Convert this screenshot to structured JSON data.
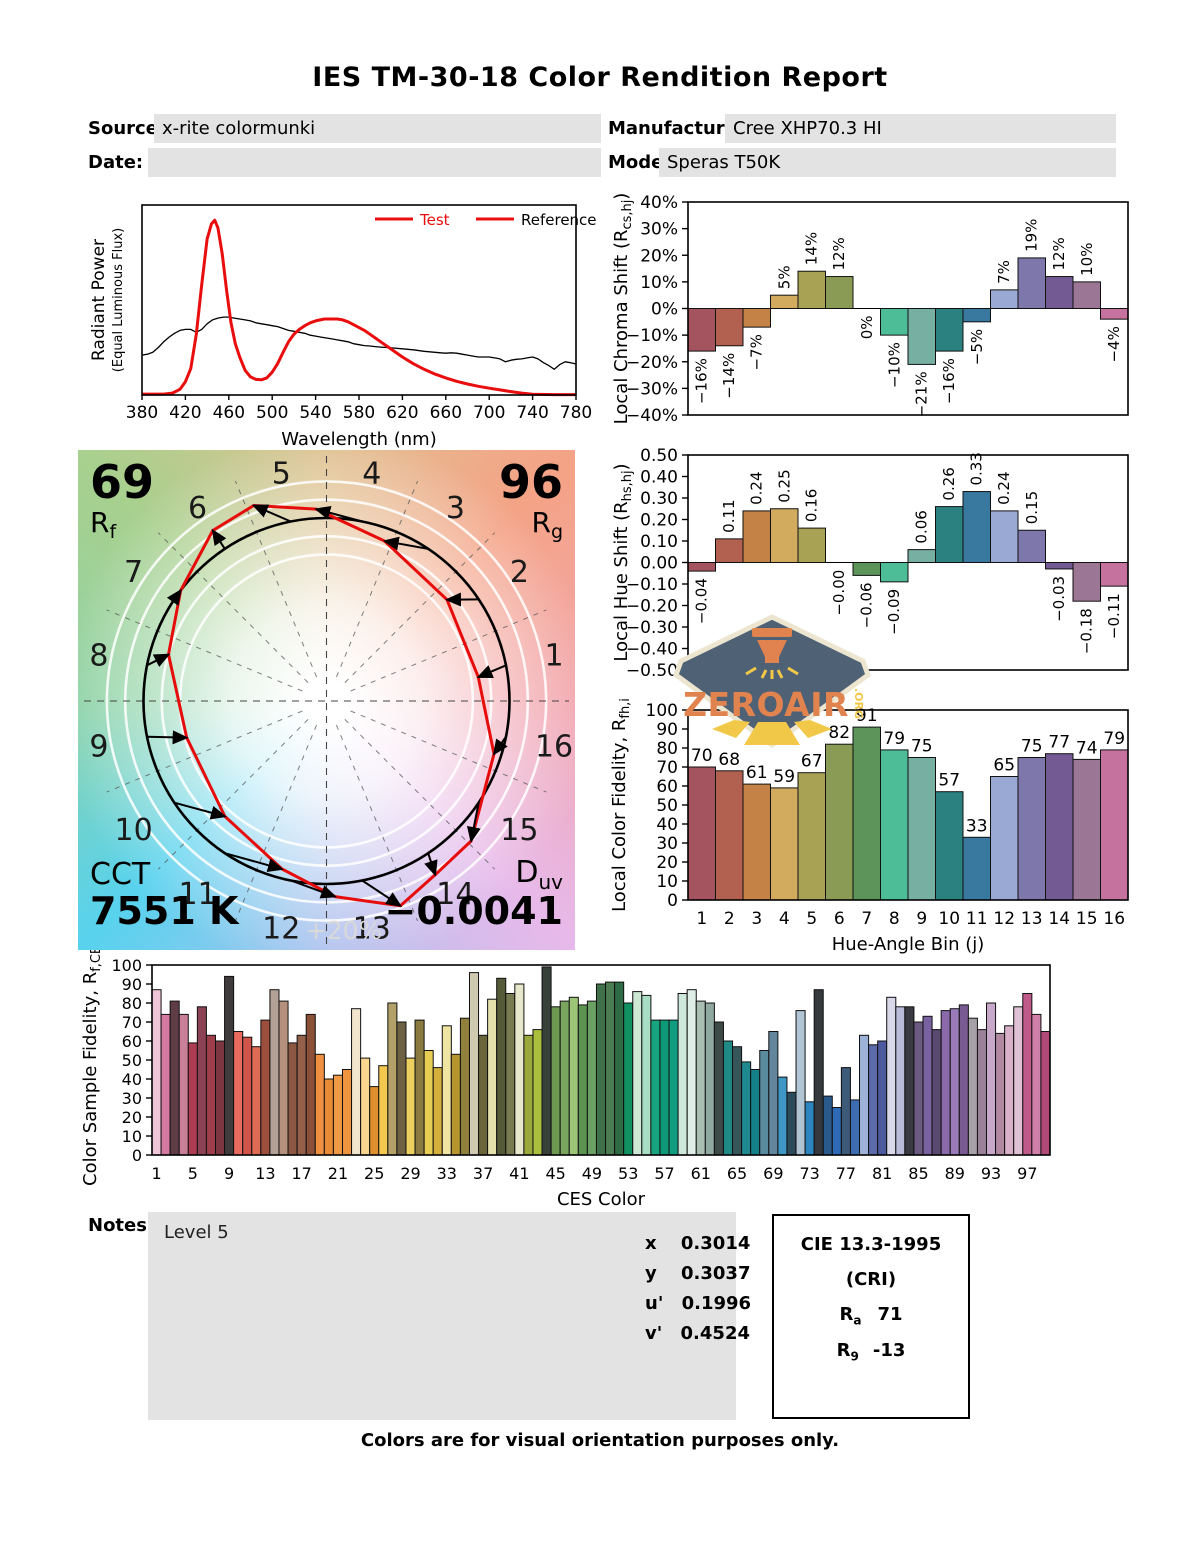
{
  "report": {
    "title": "IES TM-30-18 Color Rendition Report",
    "fields": {
      "source_label": "Source:",
      "source_value": "x-rite colormunki",
      "manufacturer_label": "Manufacturer:",
      "manufacturer_value": "Cree XHP70.3 HI",
      "date_label": "Date:",
      "date_value": "",
      "model_label": "Model:",
      "model_value": "Speras T50K"
    },
    "notes_label": "Notes:",
    "notes_value": "Level 5",
    "chromaticity": [
      {
        "label": "x",
        "value": "0.3014"
      },
      {
        "label": "y",
        "value": "0.3037"
      },
      {
        "label": "u'",
        "value": "0.1996"
      },
      {
        "label": "v'",
        "value": "0.4524"
      }
    ],
    "cie": {
      "title": "CIE 13.3-1995",
      "subtitle": "(CRI)",
      "ra_base": "R",
      "ra_sub": "a",
      "ra_value": "71",
      "r9_base": "R",
      "r9_sub": "9",
      "r9_value": "-13"
    },
    "watermark": {
      "text": "ZEROAIR",
      "tld": ".ORG"
    },
    "footer": "Colors are for visual orientation purposes only."
  },
  "cvg": {
    "rf_value": "69",
    "rf_base": "R",
    "rf_sub": "f",
    "rg_value": "96",
    "rg_base": "R",
    "rg_sub": "g",
    "cct_label": "CCT",
    "cct_value": "7551 K",
    "duv_base": "D",
    "duv_sub": "uv",
    "duv_value": "−0.0041",
    "ring_label": "+20%"
  },
  "bin_colors": [
    "#a4545f",
    "#b26150",
    "#c58247",
    "#d3ab5e",
    "#a8a354",
    "#8a9b55",
    "#5c9459",
    "#4cbd97",
    "#77afa2",
    "#2b8180",
    "#39789f",
    "#99a9d4",
    "#7d77ab",
    "#745a92",
    "#9b7795",
    "#c5739e"
  ],
  "chart_data": [
    {
      "type": "line",
      "name": "spd",
      "xlabel": "Wavelength (nm)",
      "ylabel": "Radiant Power",
      "ylabel2": "(Equal Luminous Flux)",
      "xlim": [
        380,
        780
      ],
      "xtick_step": 40,
      "legend": [
        "Test",
        "Reference"
      ],
      "series": [
        {
          "name": "Test",
          "color": "#e90d0d",
          "width": 3,
          "points": [
            [
              380,
              0.005
            ],
            [
              400,
              0.005
            ],
            [
              408,
              0.01
            ],
            [
              415,
              0.03
            ],
            [
              420,
              0.07
            ],
            [
              425,
              0.14
            ],
            [
              430,
              0.32
            ],
            [
              435,
              0.58
            ],
            [
              440,
              0.82
            ],
            [
              444,
              0.9
            ],
            [
              447,
              0.92
            ],
            [
              450,
              0.88
            ],
            [
              454,
              0.74
            ],
            [
              458,
              0.55
            ],
            [
              462,
              0.38
            ],
            [
              466,
              0.27
            ],
            [
              470,
              0.2
            ],
            [
              475,
              0.13
            ],
            [
              480,
              0.095
            ],
            [
              485,
              0.082
            ],
            [
              490,
              0.08
            ],
            [
              495,
              0.09
            ],
            [
              500,
              0.12
            ],
            [
              505,
              0.165
            ],
            [
              510,
              0.225
            ],
            [
              515,
              0.28
            ],
            [
              520,
              0.32
            ],
            [
              525,
              0.345
            ],
            [
              530,
              0.365
            ],
            [
              535,
              0.38
            ],
            [
              540,
              0.39
            ],
            [
              548,
              0.4
            ],
            [
              560,
              0.4
            ],
            [
              565,
              0.395
            ],
            [
              570,
              0.385
            ],
            [
              575,
              0.37
            ],
            [
              580,
              0.355
            ],
            [
              585,
              0.34
            ],
            [
              590,
              0.32
            ],
            [
              595,
              0.3
            ],
            [
              600,
              0.28
            ],
            [
              610,
              0.24
            ],
            [
              620,
              0.2
            ],
            [
              630,
              0.165
            ],
            [
              640,
              0.135
            ],
            [
              650,
              0.11
            ],
            [
              660,
              0.09
            ],
            [
              670,
              0.072
            ],
            [
              680,
              0.058
            ],
            [
              690,
              0.046
            ],
            [
              700,
              0.036
            ],
            [
              710,
              0.027
            ],
            [
              720,
              0.018
            ],
            [
              730,
              0.01
            ],
            [
              740,
              0.004
            ],
            [
              760,
              0.002
            ],
            [
              780,
              0.002
            ]
          ]
        },
        {
          "name": "Reference",
          "color": "#000000",
          "width": 1.3,
          "points": [
            [
              380,
              0.21
            ],
            [
              385,
              0.215
            ],
            [
              390,
              0.225
            ],
            [
              395,
              0.25
            ],
            [
              400,
              0.28
            ],
            [
              405,
              0.305
            ],
            [
              410,
              0.325
            ],
            [
              415,
              0.34
            ],
            [
              420,
              0.345
            ],
            [
              425,
              0.345
            ],
            [
              430,
              0.33
            ],
            [
              435,
              0.345
            ],
            [
              440,
              0.375
            ],
            [
              445,
              0.395
            ],
            [
              450,
              0.405
            ],
            [
              455,
              0.41
            ],
            [
              460,
              0.41
            ],
            [
              465,
              0.405
            ],
            [
              470,
              0.4
            ],
            [
              475,
              0.395
            ],
            [
              480,
              0.39
            ],
            [
              485,
              0.38
            ],
            [
              490,
              0.375
            ],
            [
              495,
              0.37
            ],
            [
              500,
              0.365
            ],
            [
              505,
              0.36
            ],
            [
              510,
              0.35
            ],
            [
              515,
              0.34
            ],
            [
              520,
              0.335
            ],
            [
              525,
              0.33
            ],
            [
              530,
              0.325
            ],
            [
              535,
              0.315
            ],
            [
              540,
              0.31
            ],
            [
              545,
              0.305
            ],
            [
              550,
              0.3
            ],
            [
              555,
              0.295
            ],
            [
              560,
              0.29
            ],
            [
              565,
              0.285
            ],
            [
              570,
              0.28
            ],
            [
              575,
              0.27
            ],
            [
              580,
              0.265
            ],
            [
              585,
              0.26
            ],
            [
              590,
              0.258
            ],
            [
              595,
              0.255
            ],
            [
              600,
              0.252
            ],
            [
              610,
              0.248
            ],
            [
              620,
              0.243
            ],
            [
              630,
              0.238
            ],
            [
              640,
              0.23
            ],
            [
              650,
              0.225
            ],
            [
              655,
              0.222
            ],
            [
              660,
              0.22
            ],
            [
              665,
              0.222
            ],
            [
              670,
              0.22
            ],
            [
              675,
              0.215
            ],
            [
              680,
              0.21
            ],
            [
              685,
              0.205
            ],
            [
              690,
              0.2
            ],
            [
              700,
              0.2
            ],
            [
              705,
              0.195
            ],
            [
              710,
              0.19
            ],
            [
              715,
              0.175
            ],
            [
              720,
              0.183
            ],
            [
              725,
              0.188
            ],
            [
              730,
              0.19
            ],
            [
              735,
              0.195
            ],
            [
              740,
              0.2
            ],
            [
              745,
              0.19
            ],
            [
              750,
              0.17
            ],
            [
              755,
              0.155
            ],
            [
              760,
              0.135
            ],
            [
              765,
              0.16
            ],
            [
              770,
              0.175
            ],
            [
              775,
              0.17
            ],
            [
              780,
              0.163
            ]
          ]
        }
      ]
    },
    {
      "type": "bar",
      "name": "chroma_shift",
      "title_pre": "Local Chroma Shift (R",
      "title_sub": "cs,hj",
      "title_post": ")",
      "ylim": [
        -40,
        40
      ],
      "ytick_step": 10,
      "ytick_suffix": "%",
      "categories": [
        1,
        2,
        3,
        4,
        5,
        6,
        7,
        8,
        9,
        10,
        11,
        12,
        13,
        14,
        15,
        16
      ],
      "values": [
        -16,
        -14,
        -7,
        5,
        14,
        12,
        0,
        -10,
        -21,
        -16,
        -5,
        7,
        19,
        12,
        10,
        -4
      ],
      "labels": [
        "−16%",
        "−14%",
        "−7%",
        "5%",
        "14%",
        "12%",
        "0%",
        "−10%",
        "−21%",
        "−16%",
        "−5%",
        "7%",
        "19%",
        "12%",
        "10%",
        "−4%"
      ]
    },
    {
      "type": "bar",
      "name": "hue_shift",
      "title_pre": "Local Hue Shift (R",
      "title_sub": "hs,hj",
      "title_post": ")",
      "ylim": [
        -0.5,
        0.5
      ],
      "ytick_step": 0.1,
      "categories": [
        1,
        2,
        3,
        4,
        5,
        6,
        7,
        8,
        9,
        10,
        11,
        12,
        13,
        14,
        15,
        16
      ],
      "values": [
        -0.04,
        0.11,
        0.24,
        0.25,
        0.16,
        -0.001,
        -0.06,
        -0.09,
        0.06,
        0.26,
        0.33,
        0.24,
        0.15,
        -0.03,
        -0.18,
        -0.11
      ],
      "labels": [
        "−0.04",
        "0.11",
        "0.24",
        "0.25",
        "0.16",
        "−0.00",
        "−0.06",
        "−0.09",
        "0.06",
        "0.26",
        "0.33",
        "0.24",
        "0.15",
        "−0.03",
        "−0.18",
        "−0.11"
      ]
    },
    {
      "type": "bar",
      "name": "local_fidelity",
      "title_pre": "Local Color Fidelity, R",
      "title_sub": "fh,i",
      "title_post": "",
      "xlabel": "Hue-Angle Bin (j)",
      "ylim": [
        0,
        100
      ],
      "ytick_step": 10,
      "categories": [
        1,
        2,
        3,
        4,
        5,
        6,
        7,
        8,
        9,
        10,
        11,
        12,
        13,
        14,
        15,
        16
      ],
      "values": [
        70,
        68,
        61,
        59,
        67,
        82,
        91,
        79,
        75,
        57,
        33,
        65,
        75,
        77,
        74,
        79
      ],
      "labels": [
        "70",
        "68",
        "61",
        "59",
        "67",
        "82",
        "91",
        "79",
        "75",
        "57",
        "33",
        "65",
        "75",
        "77",
        "74",
        "79"
      ]
    },
    {
      "type": "bar",
      "name": "ces_fidelity",
      "title_pre": "Color Sample Fidelity, R",
      "title_sub": "f,CESi",
      "title_post": "",
      "xlabel": "CES Color",
      "ylim": [
        0,
        100
      ],
      "ytick_step": 10,
      "xtick_every": 4,
      "values": [
        87,
        74,
        81,
        74,
        59,
        78,
        63,
        60,
        94,
        65,
        62,
        57,
        71,
        87,
        81,
        59,
        63,
        74,
        53,
        40,
        42,
        45,
        77,
        51,
        36,
        47,
        80,
        70,
        51,
        71,
        55,
        46,
        68,
        53,
        72,
        96,
        63,
        82,
        93,
        85,
        90,
        63,
        66,
        99,
        78,
        81,
        83,
        79,
        81,
        90,
        91,
        91,
        80,
        86,
        84,
        71,
        71,
        71,
        85,
        87,
        81,
        80,
        70,
        60,
        57,
        49,
        45,
        55,
        65,
        41,
        33,
        76,
        28,
        87,
        31,
        25,
        46,
        29,
        63,
        58,
        60,
        83,
        78,
        78,
        70,
        73,
        66,
        76,
        77,
        79,
        72,
        66,
        80,
        64,
        68,
        78,
        85,
        74,
        65
      ],
      "colors": [
        "#efc6d7",
        "#d4799f",
        "#5e3d47",
        "#c97f97",
        "#ad3b52",
        "#8c4254",
        "#9e3d4b",
        "#7c3642",
        "#3f3b3c",
        "#e96a5f",
        "#d05449",
        "#e06b55",
        "#9c4f3c",
        "#b4a195",
        "#b5917d",
        "#8d5843",
        "#95604a",
        "#8a5038",
        "#ef9140",
        "#e98a35",
        "#f09a45",
        "#ef9540",
        "#f2e5cd",
        "#fad68f",
        "#df8f2e",
        "#f4c84f",
        "#b3a169",
        "#6f6143",
        "#ecd160",
        "#8a7a3f",
        "#e8cd55",
        "#d4af3c",
        "#f0e4a2",
        "#b8962e",
        "#8f803c",
        "#cfcab0",
        "#6b653c",
        "#e6e2ac",
        "#555a38",
        "#787a50",
        "#e7e8cb",
        "#9aa83c",
        "#aabf3e",
        "#37413a",
        "#6d9950",
        "#7aa55e",
        "#9cc578",
        "#5c9350",
        "#6ba263",
        "#3f7049",
        "#4c7d52",
        "#2e6b45",
        "#0f9161",
        "#cde8d5",
        "#a8dcc3",
        "#17a47e",
        "#0e9a78",
        "#119e80",
        "#cfe8dc",
        "#dfeee6",
        "#a8bfb2",
        "#8fa8a0",
        "#3e4a48",
        "#1f8a85",
        "#37565a",
        "#1e8a8f",
        "#14808a",
        "#5a8a9e",
        "#64869c",
        "#3e97c4",
        "#2d4a5a",
        "#b0c4d4",
        "#2e86c1",
        "#35383d",
        "#2a5a8c",
        "#2e6ab5",
        "#3d5a78",
        "#3e6cb0",
        "#9cb2d8",
        "#5c6aaa",
        "#4e5a9e",
        "#d8d8ea",
        "#b8bcd8",
        "#3a3a42",
        "#6a5a80",
        "#7a62a0",
        "#5a4a72",
        "#8a6aaa",
        "#9a7ab8",
        "#7a5a92",
        "#a8a0a8",
        "#9a8098",
        "#c8a8c8",
        "#b088a0",
        "#d8b0c8",
        "#e0c0d4",
        "#c05a8a",
        "#d080a8",
        "#b04878"
      ]
    }
  ]
}
